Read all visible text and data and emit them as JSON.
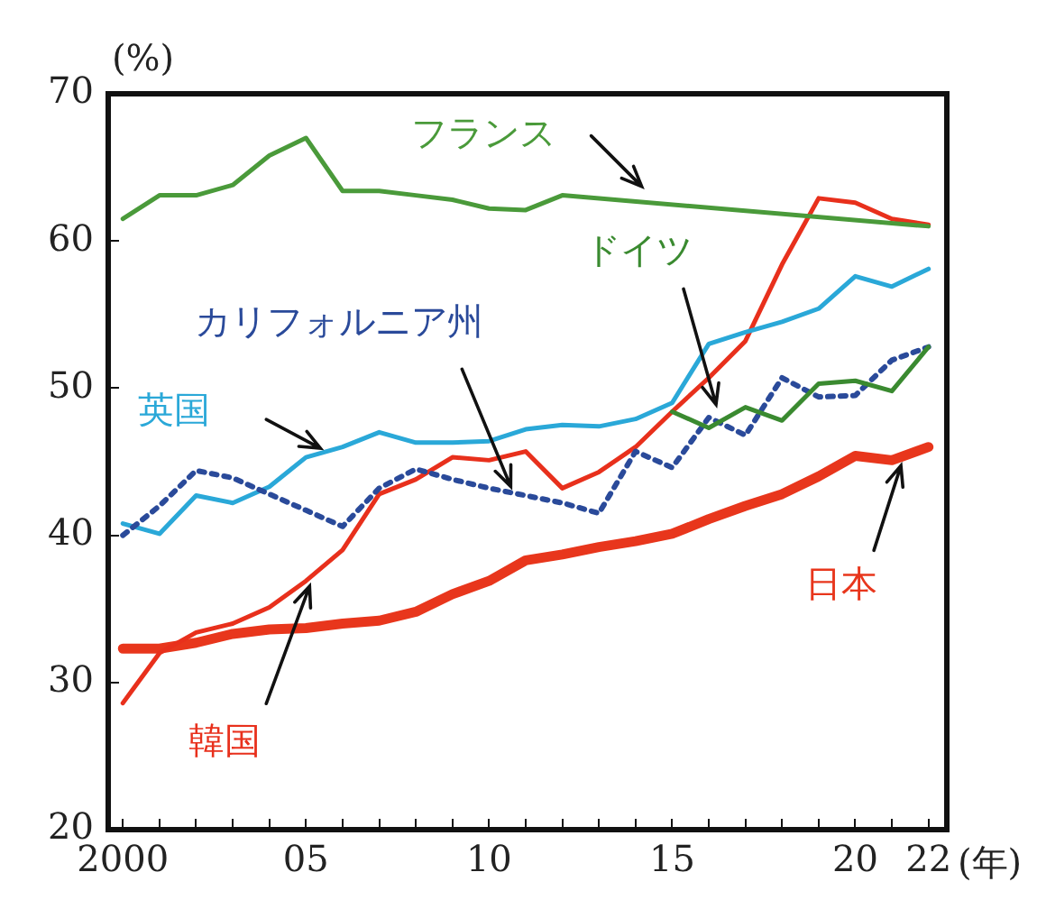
{
  "chart_data": {
    "type": "line",
    "ylabel": "(%)",
    "xlabel": "(年)",
    "marker": "none",
    "legend": false,
    "xlim": [
      1999.6,
      2022.5
    ],
    "ylim": [
      20,
      70
    ],
    "xticks": [
      {
        "value": 2000,
        "label": "2000"
      },
      {
        "value": 2001,
        "label": null
      },
      {
        "value": 2002,
        "label": null
      },
      {
        "value": 2003,
        "label": null
      },
      {
        "value": 2004,
        "label": null
      },
      {
        "value": 2005,
        "label": "05"
      },
      {
        "value": 2006,
        "label": null
      },
      {
        "value": 2007,
        "label": null
      },
      {
        "value": 2008,
        "label": null
      },
      {
        "value": 2009,
        "label": null
      },
      {
        "value": 2010,
        "label": "10"
      },
      {
        "value": 2011,
        "label": null
      },
      {
        "value": 2012,
        "label": null
      },
      {
        "value": 2013,
        "label": null
      },
      {
        "value": 2014,
        "label": null
      },
      {
        "value": 2015,
        "label": "15"
      },
      {
        "value": 2016,
        "label": null
      },
      {
        "value": 2017,
        "label": null
      },
      {
        "value": 2018,
        "label": null
      },
      {
        "value": 2019,
        "label": null
      },
      {
        "value": 2020,
        "label": "20"
      },
      {
        "value": 2021,
        "label": null
      },
      {
        "value": 2022,
        "label": "22"
      }
    ],
    "yticks": [
      20,
      30,
      40,
      50,
      60,
      70
    ],
    "x": [
      2000,
      2001,
      2002,
      2003,
      2004,
      2005,
      2006,
      2007,
      2008,
      2009,
      2010,
      2011,
      2012,
      2013,
      2014,
      2015,
      2016,
      2017,
      2018,
      2019,
      2020,
      2021,
      2022
    ],
    "series": [
      {
        "name": "フランス",
        "color": "#4a9a3a",
        "x": [
          2000,
          2001,
          2002,
          2003,
          2004,
          2005,
          2006,
          2007,
          2008,
          2009,
          2010,
          2011,
          2012,
          2022
        ],
        "values": [
          61.5,
          63.1,
          63.1,
          63.8,
          65.8,
          67.0,
          63.4,
          63.4,
          63.1,
          62.8,
          62.2,
          62.1,
          63.1,
          61.0
        ]
      },
      {
        "name": "ドイツ",
        "color": "#3a8a30",
        "x": [
          2015,
          2016,
          2017,
          2018,
          2019,
          2020,
          2021,
          2022
        ],
        "values": [
          48.4,
          47.3,
          48.7,
          47.8,
          50.3,
          50.5,
          49.8,
          52.8
        ]
      },
      {
        "name": "カリフォルニア州",
        "color": "#2a4a9a",
        "line_style": "dotted",
        "values": [
          40.0,
          42.0,
          44.4,
          43.9,
          42.8,
          41.7,
          40.6,
          43.2,
          44.5,
          43.8,
          43.2,
          42.7,
          42.2,
          41.5,
          45.7,
          44.6,
          48.0,
          46.8,
          50.7,
          49.4,
          49.5,
          51.9,
          52.8
        ]
      },
      {
        "name": "英国",
        "color": "#2aa8d8",
        "values": [
          40.8,
          40.1,
          42.7,
          42.2,
          43.3,
          45.3,
          46.0,
          47.0,
          46.3,
          46.3,
          46.4,
          47.2,
          47.5,
          47.4,
          47.9,
          49.0,
          53.0,
          53.8,
          54.5,
          55.4,
          57.6,
          56.9,
          58.1
        ]
      },
      {
        "name": "韓国",
        "color": "#e8301c",
        "values": [
          28.6,
          32.0,
          33.4,
          34.0,
          35.1,
          36.9,
          39.0,
          42.8,
          43.8,
          45.3,
          45.1,
          45.7,
          43.2,
          44.3,
          46.0,
          48.4,
          50.7,
          53.2,
          58.4,
          62.9,
          62.6,
          61.5,
          61.1
        ]
      },
      {
        "name": "日本",
        "color": "#e8361c",
        "values": [
          32.3,
          32.3,
          32.7,
          33.3,
          33.6,
          33.7,
          34.0,
          34.2,
          34.8,
          36.0,
          36.9,
          38.3,
          38.7,
          39.2,
          39.6,
          40.1,
          41.1,
          42.0,
          42.8,
          44.0,
          45.4,
          45.1,
          46.0
        ]
      }
    ]
  }
}
